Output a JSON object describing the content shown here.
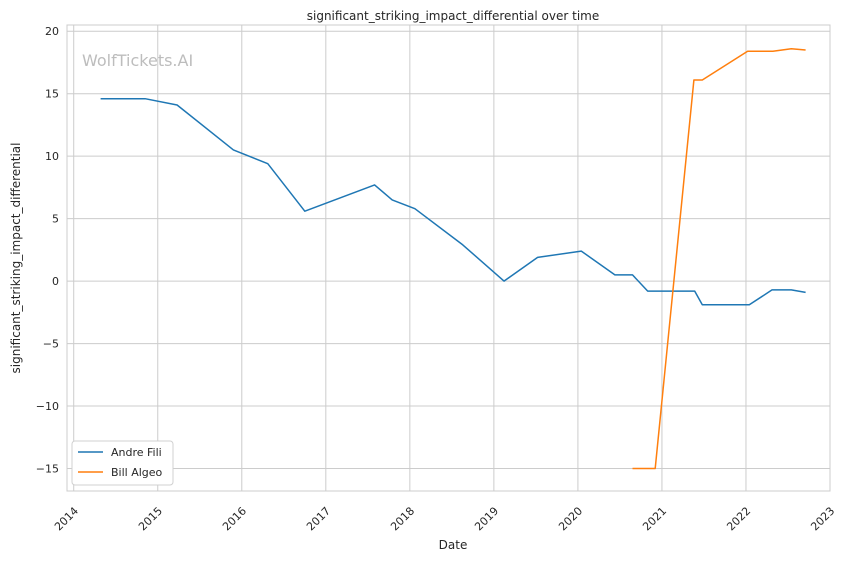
{
  "chart_data": {
    "type": "line",
    "title": "significant_striking_impact_differential over time",
    "xlabel": "Date",
    "ylabel": "significant_striking_impact_differential",
    "watermark": "WolfTickets.AI",
    "xlim": [
      2013.92,
      2023.0
    ],
    "ylim": [
      -16.8,
      20.5
    ],
    "xticks": [
      2014,
      2015,
      2016,
      2017,
      2018,
      2019,
      2020,
      2021,
      2022,
      2023
    ],
    "xtick_labels": [
      "2014",
      "2015",
      "2016",
      "2017",
      "2018",
      "2019",
      "2020",
      "2021",
      "2022",
      "2023"
    ],
    "yticks": [
      20,
      15,
      10,
      5,
      0,
      -5,
      -10,
      -15
    ],
    "ytick_labels": [
      "20",
      "15",
      "10",
      "5",
      "0",
      "−5",
      "−10",
      "−15"
    ],
    "grid": true,
    "legend_position": "bottom-left",
    "series": [
      {
        "name": "Andre Fili",
        "color": "#1f77b4",
        "x": [
          2014.32,
          2014.85,
          2015.23,
          2015.9,
          2016.31,
          2016.75,
          2017.58,
          2017.79,
          2018.06,
          2018.63,
          2019.12,
          2019.52,
          2020.04,
          2020.44,
          2020.65,
          2020.83,
          2021.39,
          2021.48,
          2022.04,
          2022.31,
          2022.54,
          2022.71
        ],
        "y": [
          14.6,
          14.6,
          14.1,
          10.5,
          9.4,
          5.6,
          7.7,
          6.5,
          5.8,
          2.9,
          0.0,
          1.9,
          2.4,
          0.5,
          0.5,
          -0.8,
          -0.8,
          -1.9,
          -1.9,
          -0.7,
          -0.7,
          -0.9
        ]
      },
      {
        "name": "Bill Algeo",
        "color": "#ff7f0e",
        "x": [
          2020.65,
          2020.92,
          2021.38,
          2021.48,
          2022.02,
          2022.32,
          2022.54,
          2022.71
        ],
        "y": [
          -15.0,
          -15.0,
          16.1,
          16.1,
          18.4,
          18.4,
          18.6,
          18.5
        ]
      }
    ]
  }
}
